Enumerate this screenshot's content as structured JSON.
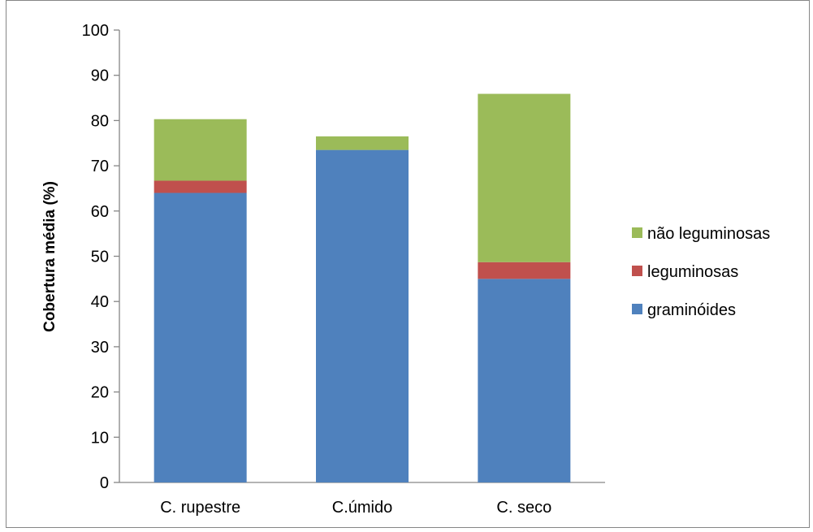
{
  "chart_data": {
    "type": "bar",
    "stacked": true,
    "ylabel": "Cobertura média (%)",
    "ylim": [
      0,
      100
    ],
    "yticks": [
      0,
      10,
      20,
      30,
      40,
      50,
      60,
      70,
      80,
      90,
      100
    ],
    "grid": false,
    "legend_position": "right",
    "categories": [
      "C. rupestre",
      "C.úmido",
      "C. seco"
    ],
    "series": [
      {
        "name": "graminóides",
        "color": "#4F81BD",
        "values": [
          64.0,
          73.5,
          45.0
        ]
      },
      {
        "name": "leguminosas",
        "color": "#C0504D",
        "values": [
          2.7,
          0.0,
          3.7
        ]
      },
      {
        "name": "não leguminosas",
        "color": "#9BBB59",
        "values": [
          13.6,
          3.0,
          37.2
        ]
      }
    ]
  }
}
